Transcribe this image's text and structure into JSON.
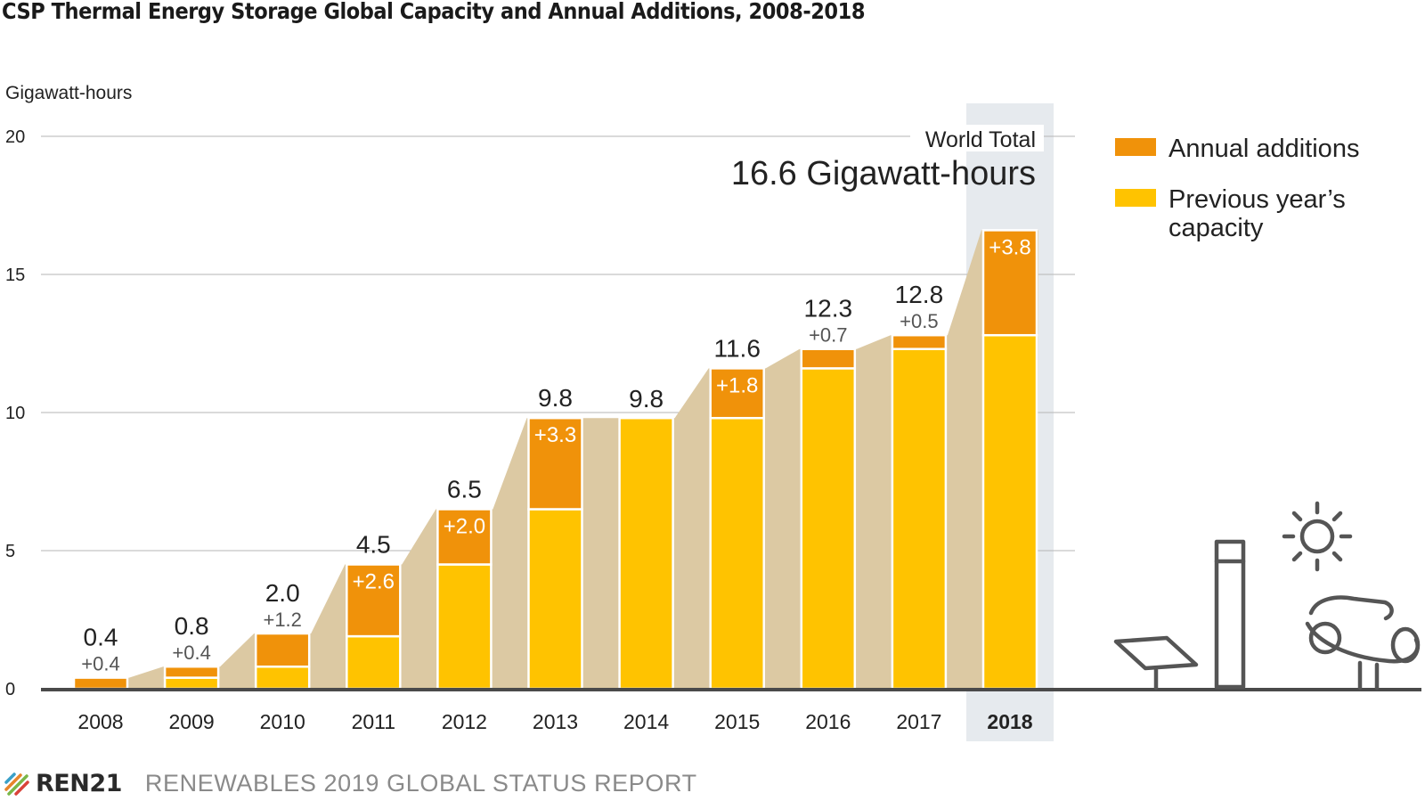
{
  "title": "CSP Thermal Energy Storage Global Capacity and Annual Additions, 2008-2018",
  "colors": {
    "annual_additions": "#F0920A",
    "previous_capacity": "#FFC300",
    "area": "#DCC9A3",
    "highlight": "#E6EAEE",
    "grid": "#b5b5b5",
    "axis": "#4a4a4a"
  },
  "chart_data": {
    "type": "bar",
    "stacked": true,
    "ylabel": "Gigawatt-hours",
    "ylim": [
      0,
      20
    ],
    "yticks": [
      "0",
      "5",
      "10",
      "15",
      "20"
    ],
    "categories": [
      "2008",
      "2009",
      "2010",
      "2011",
      "2012",
      "2013",
      "2014",
      "2015",
      "2016",
      "2017",
      "2018"
    ],
    "series": [
      {
        "name": "Previous year’s capacity",
        "values": [
          0,
          0.4,
          0.8,
          1.9,
          4.5,
          6.5,
          9.8,
          9.8,
          11.6,
          12.3,
          12.8
        ]
      },
      {
        "name": "Annual additions",
        "values": [
          0.4,
          0.4,
          1.2,
          2.6,
          2.0,
          3.3,
          0,
          1.8,
          0.7,
          0.5,
          3.8
        ]
      }
    ],
    "total_labels": [
      "0.4",
      "0.8",
      "2.0",
      "4.5",
      "6.5",
      "9.8",
      "9.8",
      "11.6",
      "12.3",
      "12.8",
      ""
    ],
    "addition_labels": [
      "+0.4",
      "+0.4",
      "+1.2",
      "+2.6",
      "+2.0",
      "+3.3",
      "",
      "+1.8",
      "+0.7",
      "+0.5",
      "+3.8"
    ],
    "addition_label_inside": [
      false,
      false,
      false,
      true,
      true,
      true,
      false,
      true,
      false,
      false,
      true
    ],
    "highlighted_category": "2018",
    "annotation": {
      "label": "World Total",
      "value": "16.6 Gigawatt-hours"
    },
    "legend": [
      {
        "label": "Annual additions",
        "color": "#F0920A"
      },
      {
        "label": "Previous year’s capacity",
        "color": "#FFC300"
      }
    ],
    "legend_position": "right",
    "grid": true
  },
  "footer": {
    "logo_text": "REN21",
    "report": "RENEWABLES 2019 GLOBAL STATUS REPORT"
  }
}
